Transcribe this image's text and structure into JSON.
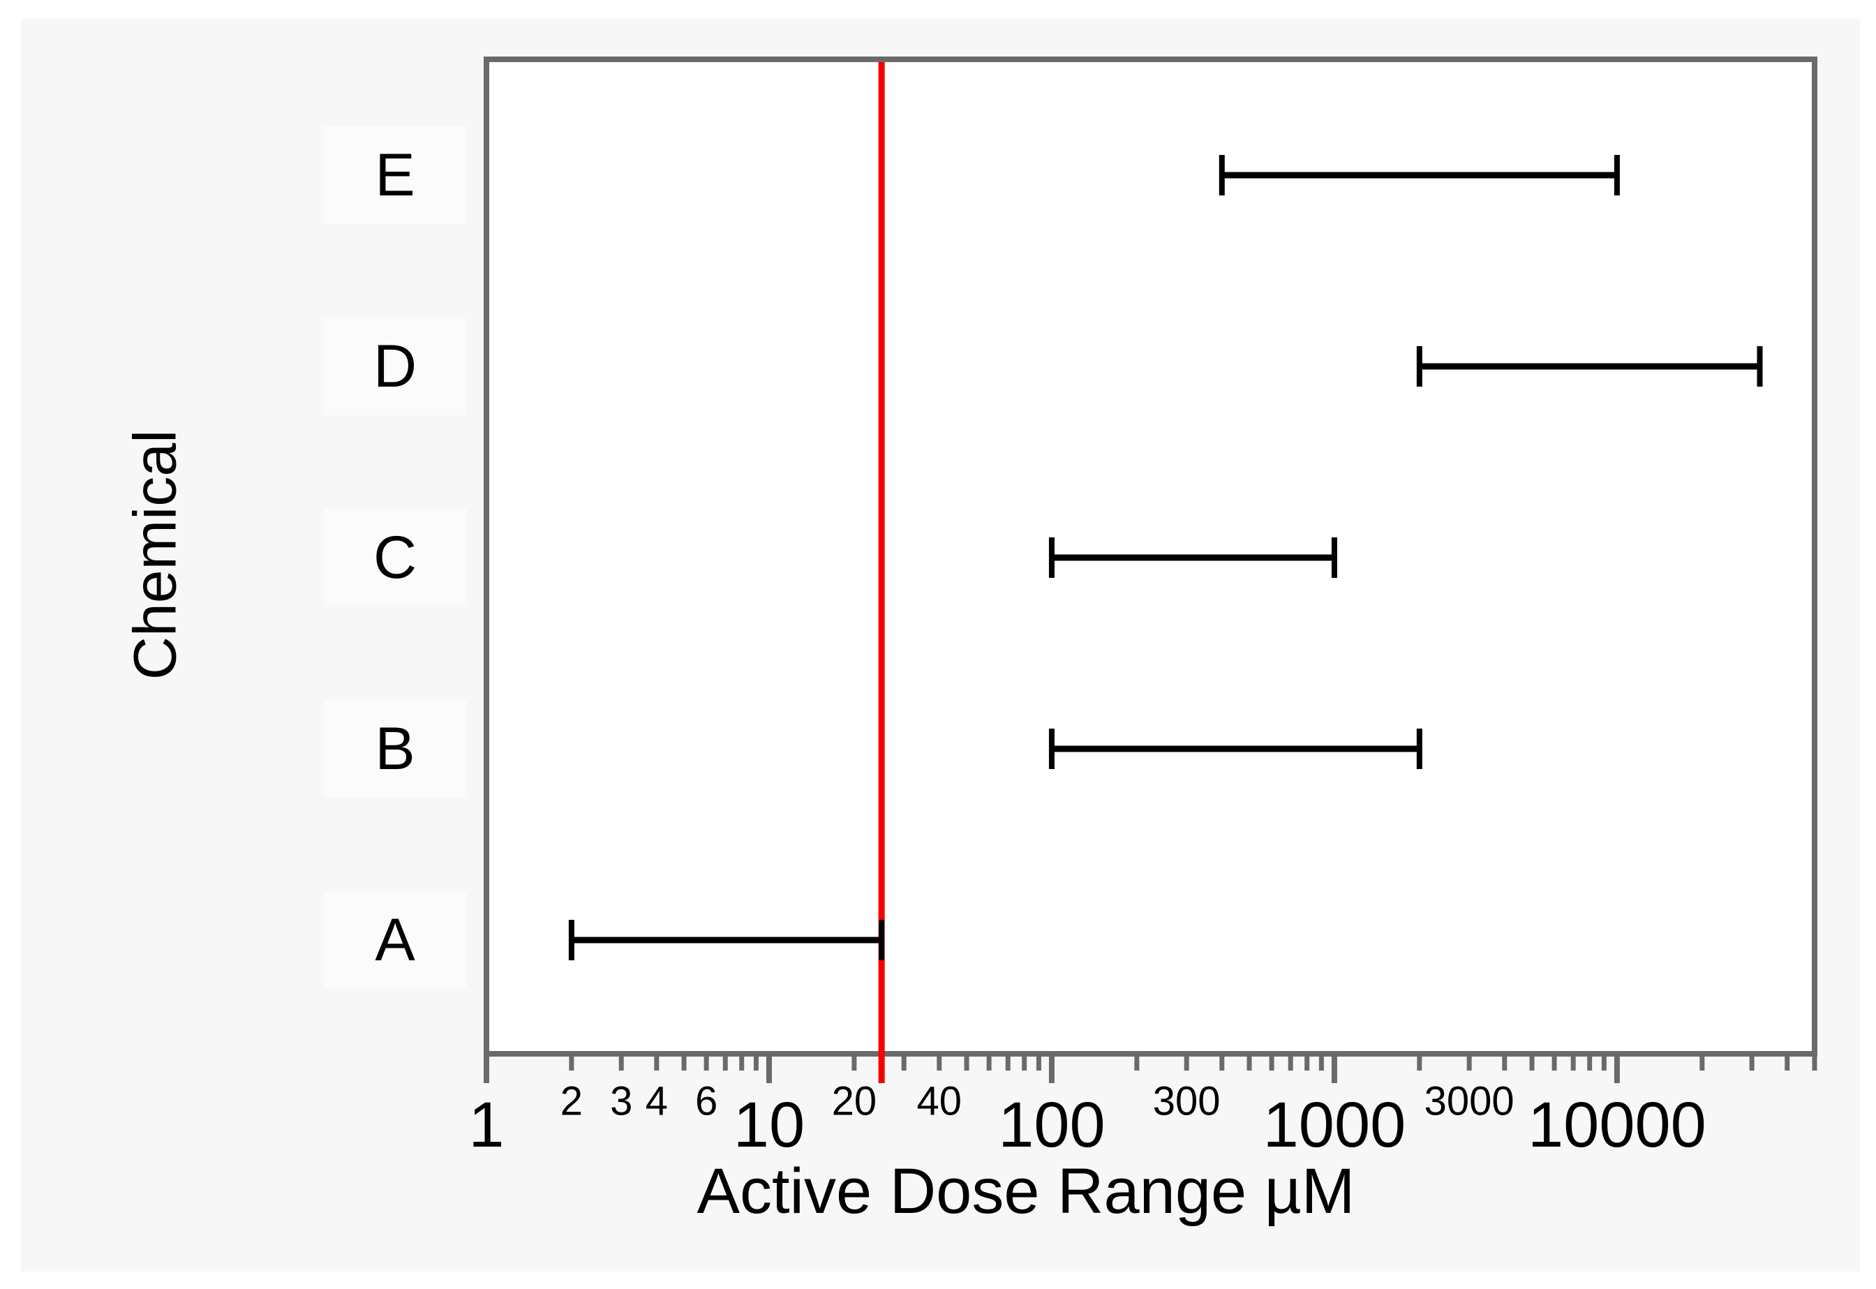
{
  "chart_data": {
    "type": "range_bar",
    "orientation": "horizontal",
    "title": "",
    "xlabel": "Active Dose Range µM",
    "ylabel": "Chemical",
    "x_scale": "log10",
    "x_domain": [
      1,
      50000
    ],
    "grid": false,
    "legend": false,
    "categories": [
      "A",
      "B",
      "C",
      "D",
      "E"
    ],
    "series": [
      {
        "name": "Active Dose Range",
        "ranges": {
          "A": [
            2,
            25
          ],
          "B": [
            100,
            2000
          ],
          "C": [
            100,
            1000
          ],
          "D": [
            2000,
            32000
          ],
          "E": [
            400,
            10000
          ]
        }
      }
    ],
    "reference_line": {
      "x": 25,
      "color": "#f60000"
    },
    "x_ticks_major": [
      1,
      10,
      100,
      1000,
      10000
    ],
    "x_tick_labels_major": [
      "1",
      "10",
      "100",
      "1000",
      "10000"
    ],
    "x_ticks_minor_labeled": [
      2,
      3,
      4,
      6,
      20,
      40,
      300,
      3000
    ],
    "x_tick_labels_minor": [
      "2",
      "3",
      "4",
      "6",
      "20",
      "40",
      "300",
      "3000"
    ],
    "x_ticks_minor": [
      2,
      3,
      4,
      5,
      6,
      7,
      8,
      9,
      20,
      30,
      40,
      50,
      60,
      70,
      80,
      90,
      200,
      300,
      400,
      500,
      600,
      700,
      800,
      900,
      2000,
      3000,
      4000,
      5000,
      6000,
      7000,
      8000,
      9000,
      20000,
      30000,
      40000,
      50000
    ],
    "colors": {
      "bar": "#000000",
      "frame": "#6a6a6a",
      "tick": "#6a6a6a",
      "reference_line": "#f60000",
      "plot_background": "#ffffff",
      "panel_background": "#f7f7f7",
      "row_cell": "#fbfbfb"
    }
  }
}
